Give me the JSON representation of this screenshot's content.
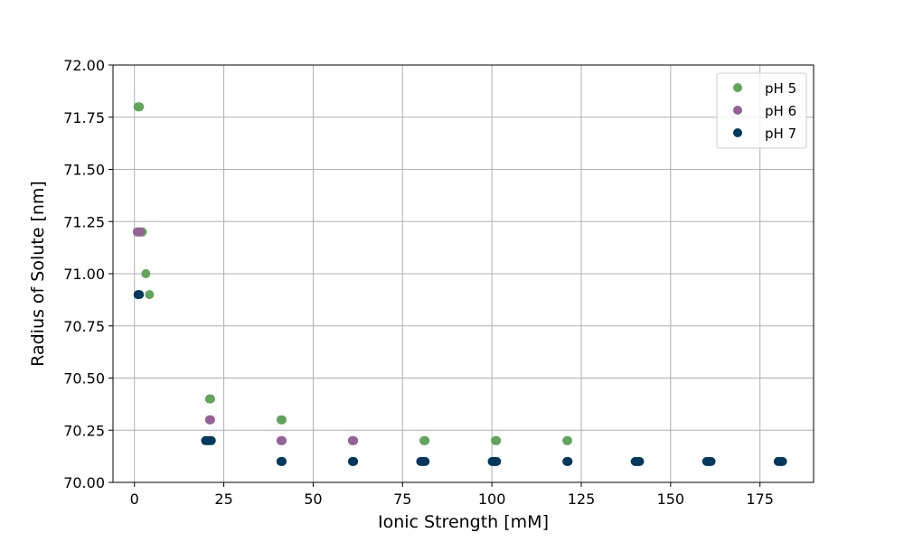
{
  "chart_data": {
    "type": "scatter",
    "title": "",
    "xlabel": "Ionic Strength [mM]",
    "ylabel": "Radius of Solute [nm]",
    "xlim": [
      -6,
      190
    ],
    "ylim": [
      70.0,
      72.0
    ],
    "x_ticks": [
      0,
      25,
      50,
      75,
      100,
      125,
      150,
      175
    ],
    "x_tick_labels": [
      "0",
      "25",
      "50",
      "75",
      "100",
      "125",
      "150",
      "175"
    ],
    "y_ticks": [
      70.0,
      70.25,
      70.5,
      70.75,
      71.0,
      71.25,
      71.5,
      71.75,
      72.0
    ],
    "y_tick_labels": [
      "70.00",
      "70.25",
      "70.50",
      "70.75",
      "71.00",
      "71.25",
      "71.50",
      "71.75",
      "72.00"
    ],
    "grid": true,
    "legend_position": "top-right",
    "series": [
      {
        "name": "pH 5",
        "color": "#5fa55a",
        "points": [
          [
            1,
            71.8
          ],
          [
            1.4,
            71.8
          ],
          [
            1.5,
            71.2
          ],
          [
            2.2,
            71.2
          ],
          [
            3.2,
            71.0
          ],
          [
            4.2,
            70.9
          ],
          [
            21,
            70.4
          ],
          [
            21.3,
            70.4
          ],
          [
            41,
            70.3
          ],
          [
            41.3,
            70.3
          ],
          [
            61,
            70.2
          ],
          [
            81,
            70.2
          ],
          [
            81.3,
            70.2
          ],
          [
            101,
            70.2
          ],
          [
            101.3,
            70.2
          ],
          [
            121,
            70.2
          ],
          [
            121.2,
            70.2
          ]
        ]
      },
      {
        "name": "pH 6",
        "color": "#956196",
        "points": [
          [
            0.8,
            71.2
          ],
          [
            1.2,
            71.2
          ],
          [
            1.6,
            71.2
          ],
          [
            21,
            70.3
          ],
          [
            21.3,
            70.3
          ],
          [
            41,
            70.2
          ],
          [
            41.3,
            70.2
          ],
          [
            61,
            70.2
          ],
          [
            61.3,
            70.2
          ]
        ]
      },
      {
        "name": "pH 7",
        "color": "#01395e",
        "points": [
          [
            1,
            70.9
          ],
          [
            1.4,
            70.9
          ],
          [
            19.9,
            70.2
          ],
          [
            20.3,
            70.2
          ],
          [
            20.7,
            70.2
          ],
          [
            21.1,
            70.2
          ],
          [
            21.5,
            70.2
          ],
          [
            41,
            70.1
          ],
          [
            41.3,
            70.1
          ],
          [
            61,
            70.1
          ],
          [
            61.3,
            70.1
          ],
          [
            80.1,
            70.1
          ],
          [
            80.5,
            70.1
          ],
          [
            80.9,
            70.1
          ],
          [
            81.3,
            70.1
          ],
          [
            100.1,
            70.1
          ],
          [
            100.5,
            70.1
          ],
          [
            100.9,
            70.1
          ],
          [
            101.3,
            70.1
          ],
          [
            121,
            70.1
          ],
          [
            121.3,
            70.1
          ],
          [
            140.1,
            70.1
          ],
          [
            140.5,
            70.1
          ],
          [
            140.9,
            70.1
          ],
          [
            141.3,
            70.1
          ],
          [
            160.1,
            70.1
          ],
          [
            160.5,
            70.1
          ],
          [
            160.9,
            70.1
          ],
          [
            161.3,
            70.1
          ],
          [
            180.1,
            70.1
          ],
          [
            180.5,
            70.1
          ],
          [
            180.9,
            70.1
          ],
          [
            181.3,
            70.1
          ]
        ]
      }
    ]
  }
}
